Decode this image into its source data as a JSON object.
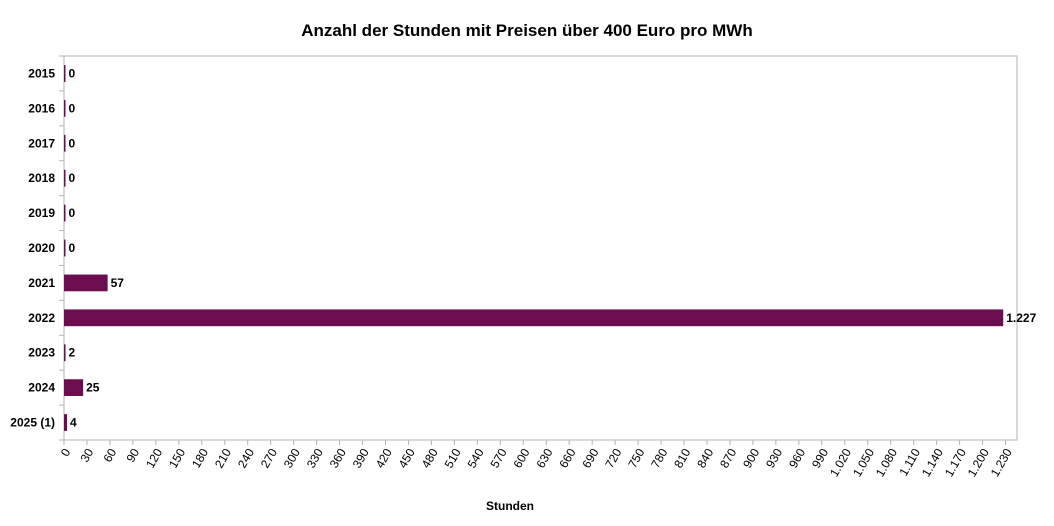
{
  "chart_data": {
    "type": "bar",
    "orientation": "horizontal",
    "title": "Anzahl der Stunden mit Preisen über 400 Euro pro MWh",
    "xlabel": "Stunden",
    "ylabel": "",
    "categories": [
      "2015",
      "2016",
      "2017",
      "2018",
      "2019",
      "2020",
      "2021",
      "2022",
      "2023",
      "2024",
      "2025 (1)"
    ],
    "values": [
      0,
      0,
      0,
      0,
      0,
      0,
      57,
      1227,
      2,
      25,
      4
    ],
    "value_labels": [
      "0",
      "0",
      "0",
      "0",
      "0",
      "0",
      "57",
      "1.227",
      "2",
      "25",
      "4"
    ],
    "xlim": [
      0,
      1245
    ],
    "x_ticks": [
      0,
      30,
      60,
      90,
      120,
      150,
      180,
      210,
      240,
      270,
      300,
      330,
      360,
      390,
      420,
      450,
      480,
      510,
      540,
      570,
      600,
      630,
      660,
      690,
      720,
      750,
      780,
      810,
      840,
      870,
      900,
      930,
      960,
      990,
      1020,
      1050,
      1080,
      1110,
      1140,
      1170,
      1200,
      1230
    ],
    "x_tick_labels": [
      "0",
      "30",
      "60",
      "90",
      "120",
      "150",
      "180",
      "210",
      "240",
      "270",
      "300",
      "330",
      "360",
      "390",
      "420",
      "450",
      "480",
      "510",
      "540",
      "570",
      "600",
      "630",
      "660",
      "690",
      "720",
      "750",
      "780",
      "810",
      "840",
      "870",
      "900",
      "930",
      "960",
      "990",
      "1.020",
      "1.050",
      "1.080",
      "1.110",
      "1.140",
      "1.170",
      "1.200",
      "1.230"
    ],
    "grid": false,
    "legend": "none",
    "bar_color": "#6b0d4f",
    "frame_color": "#b3b3b3"
  }
}
